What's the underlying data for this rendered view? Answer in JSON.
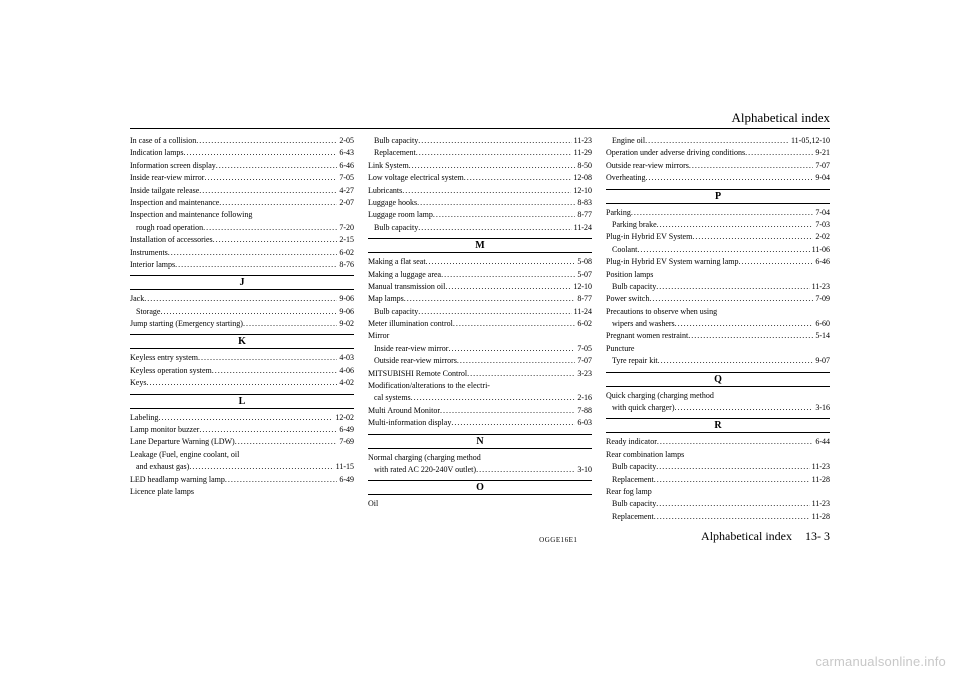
{
  "header": {
    "title": "Alphabetical index"
  },
  "footer": {
    "code": "OGGE16E1",
    "label": "Alphabetical index",
    "page": "13- 3"
  },
  "watermark": "carmanualsonline.info",
  "columns": [
    {
      "items": [
        {
          "t": "entry",
          "label": "In case of a collision",
          "page": "2-05"
        },
        {
          "t": "entry",
          "label": "Indication lamps",
          "page": "6-43"
        },
        {
          "t": "entry",
          "label": "Information screen display",
          "page": "6-46"
        },
        {
          "t": "entry",
          "label": "Inside rear-view mirror",
          "page": "7-05"
        },
        {
          "t": "entry",
          "label": "Inside tailgate release",
          "page": "4-27"
        },
        {
          "t": "entry",
          "label": "Inspection and maintenance",
          "page": "2-07"
        },
        {
          "t": "cont",
          "lines": [
            "Inspection and maintenance following",
            "rough road operation"
          ],
          "page": "7-20"
        },
        {
          "t": "entry",
          "label": "Installation of accessories",
          "page": "2-15"
        },
        {
          "t": "entry",
          "label": "Instruments",
          "page": "6-02"
        },
        {
          "t": "entry",
          "label": "Interior lamps",
          "page": "8-76"
        },
        {
          "t": "section",
          "label": "J"
        },
        {
          "t": "entry",
          "label": "Jack",
          "page": "9-06"
        },
        {
          "t": "entry",
          "indent": true,
          "label": "Storage",
          "page": "9-06"
        },
        {
          "t": "entry",
          "label": "Jump starting (Emergency starting)",
          "page": "9-02"
        },
        {
          "t": "section",
          "label": "K"
        },
        {
          "t": "entry",
          "label": "Keyless entry system",
          "page": "4-03"
        },
        {
          "t": "entry",
          "label": "Keyless operation system",
          "page": "4-06"
        },
        {
          "t": "entry",
          "label": "Keys",
          "page": "4-02"
        },
        {
          "t": "section",
          "label": "L"
        },
        {
          "t": "entry",
          "label": "Labeling",
          "page": "12-02"
        },
        {
          "t": "entry",
          "label": "Lamp monitor buzzer",
          "page": "6-49"
        },
        {
          "t": "entry",
          "label": "Lane Departure Warning (LDW)",
          "page": "7-69"
        },
        {
          "t": "cont",
          "lines": [
            "Leakage (Fuel, engine coolant, oil",
            "and exhaust gas)"
          ],
          "page": "11-15"
        },
        {
          "t": "entry",
          "label": "LED headlamp warning lamp",
          "page": "6-49"
        },
        {
          "t": "plain",
          "label": "Licence plate lamps"
        }
      ]
    },
    {
      "items": [
        {
          "t": "entry",
          "indent": true,
          "label": "Bulb capacity",
          "page": "11-23"
        },
        {
          "t": "entry",
          "indent": true,
          "label": "Replacement",
          "page": "11-29"
        },
        {
          "t": "entry",
          "label": "Link System",
          "page": "8-50"
        },
        {
          "t": "entry",
          "label": "Low voltage electrical system",
          "page": "12-08"
        },
        {
          "t": "entry",
          "label": "Lubricants",
          "page": "12-10"
        },
        {
          "t": "entry",
          "label": "Luggage hooks",
          "page": "8-83"
        },
        {
          "t": "entry",
          "label": "Luggage room lamp",
          "page": "8-77"
        },
        {
          "t": "entry",
          "indent": true,
          "label": "Bulb capacity",
          "page": "11-24"
        },
        {
          "t": "section",
          "label": "M"
        },
        {
          "t": "entry",
          "label": "Making a flat seat",
          "page": "5-08"
        },
        {
          "t": "entry",
          "label": "Making a luggage area",
          "page": "5-07"
        },
        {
          "t": "entry",
          "label": "Manual transmission oil",
          "page": "12-10"
        },
        {
          "t": "entry",
          "label": "Map lamps",
          "page": "8-77"
        },
        {
          "t": "entry",
          "indent": true,
          "label": "Bulb capacity",
          "page": "11-24"
        },
        {
          "t": "entry",
          "label": "Meter illumination control",
          "page": "6-02"
        },
        {
          "t": "plain",
          "label": "Mirror"
        },
        {
          "t": "entry",
          "indent": true,
          "label": "Inside rear-view mirror",
          "page": "7-05"
        },
        {
          "t": "entry",
          "indent": true,
          "label": "Outside rear-view mirrors",
          "page": "7-07"
        },
        {
          "t": "entry",
          "label": "MITSUBISHI Remote Control",
          "page": "3-23"
        },
        {
          "t": "cont",
          "lines": [
            "Modification/alterations to the electri-",
            "cal systems"
          ],
          "page": "2-16"
        },
        {
          "t": "entry",
          "label": "Multi Around Monitor",
          "page": "7-88"
        },
        {
          "t": "entry",
          "label": "Multi-information display",
          "page": "6-03"
        },
        {
          "t": "section",
          "label": "N"
        },
        {
          "t": "cont",
          "lines": [
            "Normal charging (charging method",
            "with rated AC 220-240V outlet)"
          ],
          "page": "3-10"
        },
        {
          "t": "section",
          "label": "O"
        },
        {
          "t": "plain",
          "label": "Oil"
        }
      ]
    },
    {
      "items": [
        {
          "t": "entry",
          "indent": true,
          "label": "Engine oil",
          "page": "11-05,12-10"
        },
        {
          "t": "entry",
          "label": "Operation under adverse driving conditions",
          "page": "9-21"
        },
        {
          "t": "entry",
          "label": "Outside rear-view mirrors",
          "page": "7-07"
        },
        {
          "t": "entry",
          "label": "Overheating",
          "page": "9-04"
        },
        {
          "t": "section",
          "label": "P"
        },
        {
          "t": "entry",
          "label": "Parking",
          "page": "7-04"
        },
        {
          "t": "entry",
          "indent": true,
          "label": "Parking brake",
          "page": "7-03"
        },
        {
          "t": "entry",
          "label": "Plug-in Hybrid EV System",
          "page": "2-02"
        },
        {
          "t": "entry",
          "indent": true,
          "label": "Coolant",
          "page": "11-06"
        },
        {
          "t": "entry",
          "label": "Plug-in Hybrid EV System warning lamp",
          "page": "6-46"
        },
        {
          "t": "plain",
          "label": "Position lamps"
        },
        {
          "t": "entry",
          "indent": true,
          "label": "Bulb capacity",
          "page": "11-23"
        },
        {
          "t": "entry",
          "label": "Power switch",
          "page": "7-09"
        },
        {
          "t": "cont",
          "lines": [
            "Precautions to observe when using",
            "wipers and washers"
          ],
          "page": "6-60"
        },
        {
          "t": "entry",
          "label": "Pregnant women restraint",
          "page": "5-14"
        },
        {
          "t": "plain",
          "label": "Puncture"
        },
        {
          "t": "entry",
          "indent": true,
          "label": "Tyre repair kit",
          "page": "9-07"
        },
        {
          "t": "section",
          "label": "Q"
        },
        {
          "t": "cont",
          "lines": [
            "Quick charging (charging method",
            "with quick charger)"
          ],
          "page": "3-16"
        },
        {
          "t": "section",
          "label": "R"
        },
        {
          "t": "entry",
          "label": "Ready indicator",
          "page": "6-44"
        },
        {
          "t": "plain",
          "label": "Rear combination lamps"
        },
        {
          "t": "entry",
          "indent": true,
          "label": "Bulb capacity",
          "page": "11-23"
        },
        {
          "t": "entry",
          "indent": true,
          "label": "Replacement",
          "page": "11-28"
        },
        {
          "t": "plain",
          "label": "Rear fog lamp"
        },
        {
          "t": "entry",
          "indent": true,
          "label": "Bulb capacity",
          "page": "11-23"
        },
        {
          "t": "entry",
          "indent": true,
          "label": "Replacement",
          "page": "11-28"
        }
      ]
    }
  ]
}
